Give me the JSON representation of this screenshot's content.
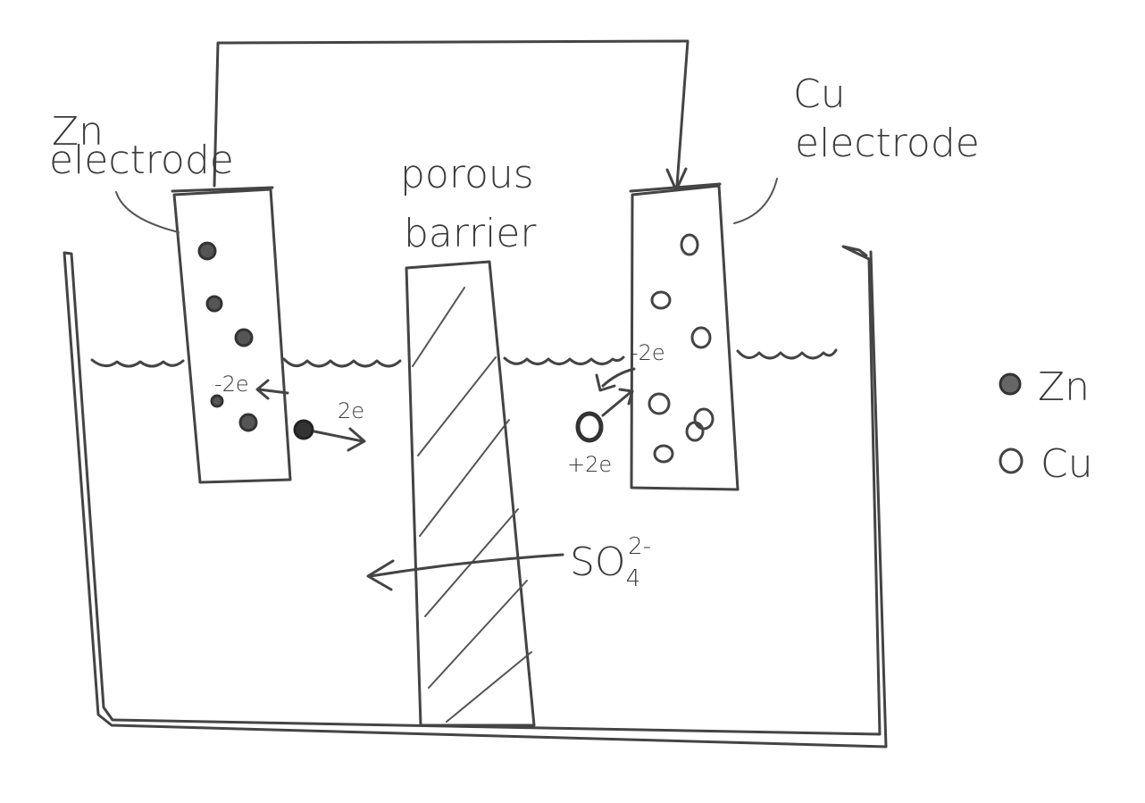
{
  "labels": {
    "zn_electrode_line1": "Zn",
    "zn_electrode_line2": "electrode",
    "cu_electrode_line1": "Cu",
    "cu_electrode_line2": "electrode",
    "barrier_line1": "porous",
    "barrier_line2": "barrier",
    "zn_minus_2e": "-2e",
    "zn_2e": "2e",
    "cu_minus_2e": "-2e",
    "cu_plus_2e": "+2e",
    "sulfate_base": "SO",
    "sulfate_sub": "4",
    "sulfate_sup": "2-"
  },
  "legend": {
    "zn": "Zn",
    "cu": "Cu"
  },
  "colors": {
    "ink": "#444444",
    "hatch": "#777777",
    "background": "#ffffff"
  }
}
